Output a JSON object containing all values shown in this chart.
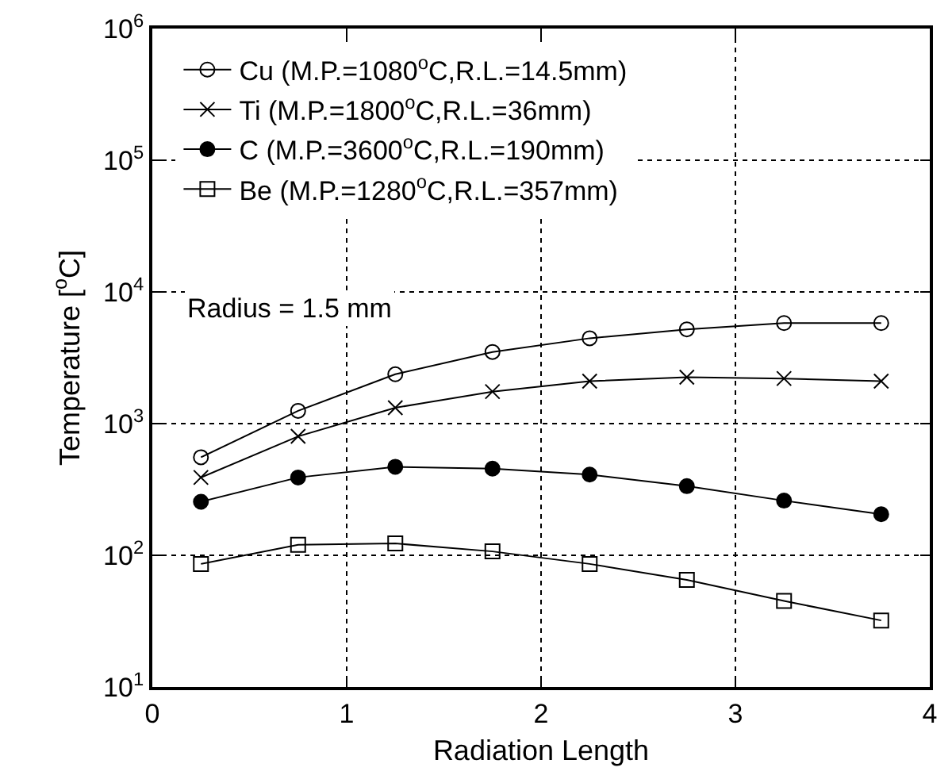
{
  "chart_data": {
    "type": "line",
    "xlabel": "Radiation Length",
    "ylabel": "Temperature [$^{o}$C]",
    "x": [
      0.25,
      0.75,
      1.25,
      1.75,
      2.25,
      2.75,
      3.25,
      3.75
    ],
    "series": [
      {
        "name": "Cu (M.P.=1080$^{o}$C,R.L.=14.5mm)",
        "color": "#000000",
        "marker": "circle-open",
        "values": [
          555,
          1250,
          2370,
          3500,
          4450,
          5200,
          5800,
          5800
        ]
      },
      {
        "name": "Ti (M.P.=1800$^{o}$C,R.L.=36mm)",
        "color": "#000000",
        "marker": "cross",
        "values": [
          390,
          800,
          1320,
          1750,
          2100,
          2250,
          2200,
          2100
        ]
      },
      {
        "name": "C (M.P.=3600$^{o}$C,R.L.=190mm)",
        "color": "#000000",
        "marker": "circle",
        "values": [
          255,
          390,
          470,
          455,
          410,
          335,
          260,
          205
        ]
      },
      {
        "name": "Be (M.P.=1280$^{o}$C,R.L.=357mm)",
        "color": "#000000",
        "marker": "square-open",
        "values": [
          86,
          120,
          123,
          107,
          86,
          65,
          45,
          32
        ]
      }
    ],
    "log": "y",
    "xlim": [
      0,
      4
    ],
    "xticks": [
      0,
      1,
      2,
      3,
      4
    ],
    "ylim": [
      10,
      1000000
    ],
    "yticks": [
      {
        "value": 10,
        "label": "10$^{1}$"
      },
      {
        "value": 100,
        "label": "10$^{2}$"
      },
      {
        "value": 1000,
        "label": "10$^{3}$"
      },
      {
        "value": 10000,
        "label": "10$^{4}$"
      },
      {
        "value": 100000,
        "label": "10$^{5}$"
      },
      {
        "value": 1000000,
        "label": "10$^{6}$"
      }
    ],
    "grid": true,
    "legend": "top left",
    "line_style": "solid",
    "annotations": [
      "Radius = 1.5 mm"
    ]
  }
}
